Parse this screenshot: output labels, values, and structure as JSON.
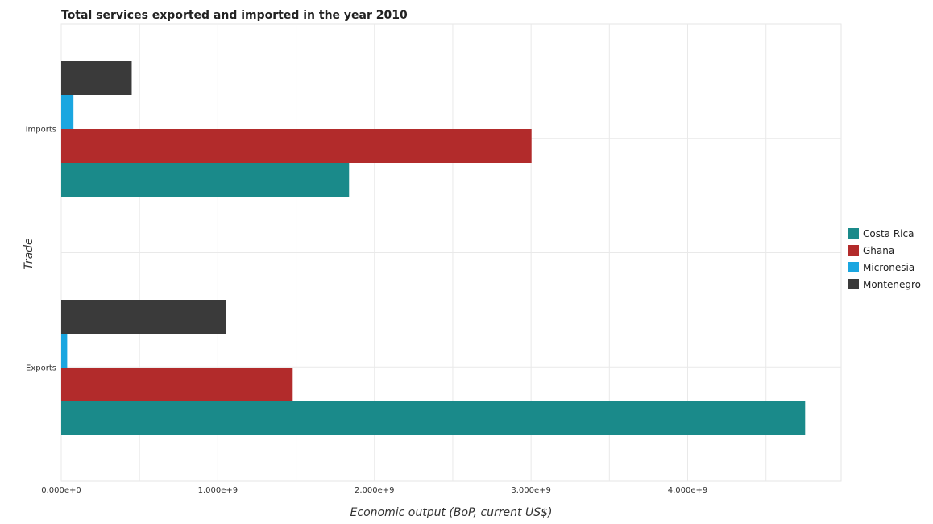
{
  "chart_data": {
    "type": "bar",
    "orientation": "horizontal",
    "title": "Total services exported and imported in the year 2010",
    "xlabel": "Economic output (BoP, current US$)",
    "ylabel": "Trade",
    "categories": [
      "Exports",
      "Imports"
    ],
    "xlim": [
      0,
      5000000000
    ],
    "xticks": [
      0,
      1000000000,
      2000000000,
      3000000000,
      4000000000
    ],
    "xtick_labels": [
      "0.000e+0",
      "1.000e+9",
      "2.000e+9",
      "3.000e+9",
      "4.000e+9"
    ],
    "grid": true,
    "legend_position": "right",
    "series": [
      {
        "name": "Costa Rica",
        "color": "#1a8a8a",
        "values": [
          4750000000,
          1838000000
        ]
      },
      {
        "name": "Ghana",
        "color": "#b22b2b",
        "values": [
          1478000000,
          3003000000
        ]
      },
      {
        "name": "Micronesia",
        "color": "#1aa6e0",
        "values": [
          38000000,
          78000000
        ]
      },
      {
        "name": "Montenegro",
        "color": "#3a3a3a",
        "values": [
          1053000000,
          450000000
        ]
      }
    ]
  }
}
